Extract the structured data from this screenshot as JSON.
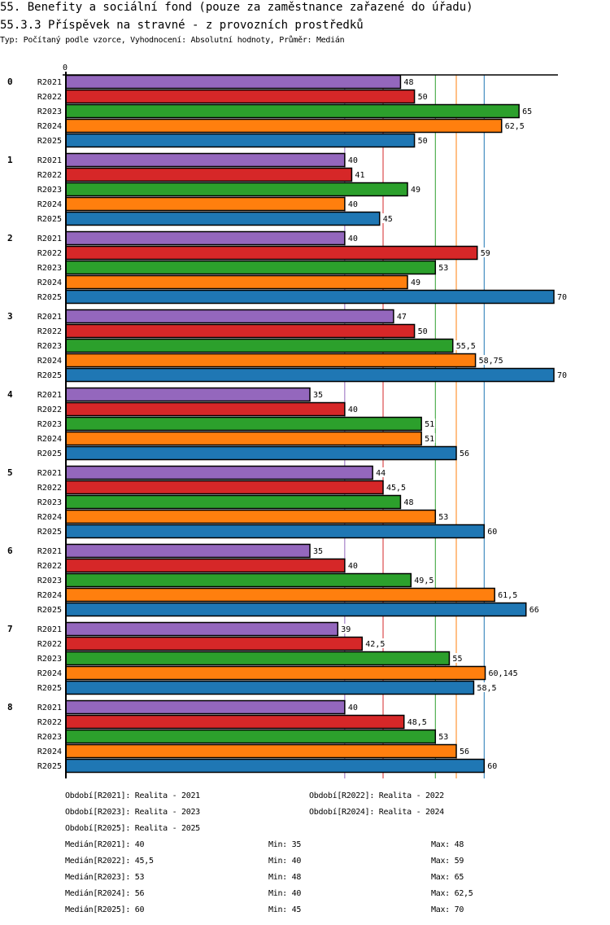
{
  "header": {
    "title": "55. Benefity a sociální fond (pouze za zaměstnance zařazené do úřadu)",
    "subtitle": "55.3.3 Příspěvek na stravné - z provozních prostředků",
    "info": "Typ: Počítaný podle vzorce, Vyhodnocení: Absolutní hodnoty, Průměr: Medián"
  },
  "chart_data": {
    "type": "bar",
    "orientation": "horizontal",
    "title": "55.3.3 Příspěvek na stravné - z provozních prostředků",
    "xlabel": "",
    "ylabel": "",
    "x_axis_tick_labels": [
      "0"
    ],
    "xlim": [
      0,
      70
    ],
    "grid": false,
    "categories": [
      "0",
      "1",
      "2",
      "3",
      "4",
      "5",
      "6",
      "7",
      "8"
    ],
    "series": [
      {
        "name": "R2021",
        "color": "#9467bd",
        "values": [
          48,
          40,
          40,
          47,
          35,
          44,
          35,
          39,
          40
        ],
        "labels": [
          "48",
          "40",
          "40",
          "47",
          "35",
          "44",
          "35",
          "39",
          "40"
        ],
        "median": 40,
        "median_label": "40",
        "min_label": "35",
        "max_label": "48"
      },
      {
        "name": "R2022",
        "color": "#d62728",
        "values": [
          50,
          41,
          59,
          50,
          40,
          45.5,
          40,
          42.5,
          48.5
        ],
        "labels": [
          "50",
          "41",
          "59",
          "50",
          "40",
          "45,5",
          "40",
          "42,5",
          "48,5"
        ],
        "median": 45.5,
        "median_label": "45,5",
        "min_label": "40",
        "max_label": "59"
      },
      {
        "name": "R2023",
        "color": "#2ca02c",
        "values": [
          65,
          49,
          53,
          55.5,
          51,
          48,
          49.5,
          55,
          53
        ],
        "labels": [
          "65",
          "49",
          "53",
          "55,5",
          "51",
          "48",
          "49,5",
          "55",
          "53"
        ],
        "median": 53,
        "median_label": "53",
        "min_label": "48",
        "max_label": "65"
      },
      {
        "name": "R2024",
        "color": "#ff7f0e",
        "values": [
          62.5,
          40,
          49,
          58.75,
          51,
          53,
          61.5,
          60.145,
          56
        ],
        "labels": [
          "62,5",
          "40",
          "49",
          "58,75",
          "51",
          "53",
          "61,5",
          "60,145",
          "56"
        ],
        "median": 56,
        "median_label": "56",
        "min_label": "40",
        "max_label": "62,5"
      },
      {
        "name": "R2025",
        "color": "#1f77b4",
        "values": [
          50,
          45,
          70,
          70,
          56,
          60,
          66,
          58.5,
          60
        ],
        "labels": [
          "50",
          "45",
          "70",
          "70",
          "56",
          "60",
          "66",
          "58,5",
          "60"
        ],
        "median": 60,
        "median_label": "60",
        "min_label": "45",
        "max_label": "70"
      }
    ],
    "reference_lines": "median per series (vertical, series color)",
    "legend_position": "bottom"
  },
  "legend": {
    "periods": [
      {
        "key": "Období[R2021]:",
        "value": "Realita - 2021"
      },
      {
        "key": "Období[R2022]:",
        "value": "Realita - 2022"
      },
      {
        "key": "Období[R2023]:",
        "value": "Realita - 2023"
      },
      {
        "key": "Období[R2024]:",
        "value": "Realita - 2024"
      },
      {
        "key": "Období[R2025]:",
        "value": "Realita - 2025"
      }
    ],
    "stats": [
      {
        "median": "Medián[R2021]: 40",
        "min": "Min: 35",
        "max": "Max: 48"
      },
      {
        "median": "Medián[R2022]: 45,5",
        "min": "Min: 40",
        "max": "Max: 59"
      },
      {
        "median": "Medián[R2023]: 53",
        "min": "Min: 48",
        "max": "Max: 65"
      },
      {
        "median": "Medián[R2024]: 56",
        "min": "Min: 40",
        "max": "Max: 62,5"
      },
      {
        "median": "Medián[R2025]: 60",
        "min": "Min: 45",
        "max": "Max: 70"
      }
    ]
  }
}
